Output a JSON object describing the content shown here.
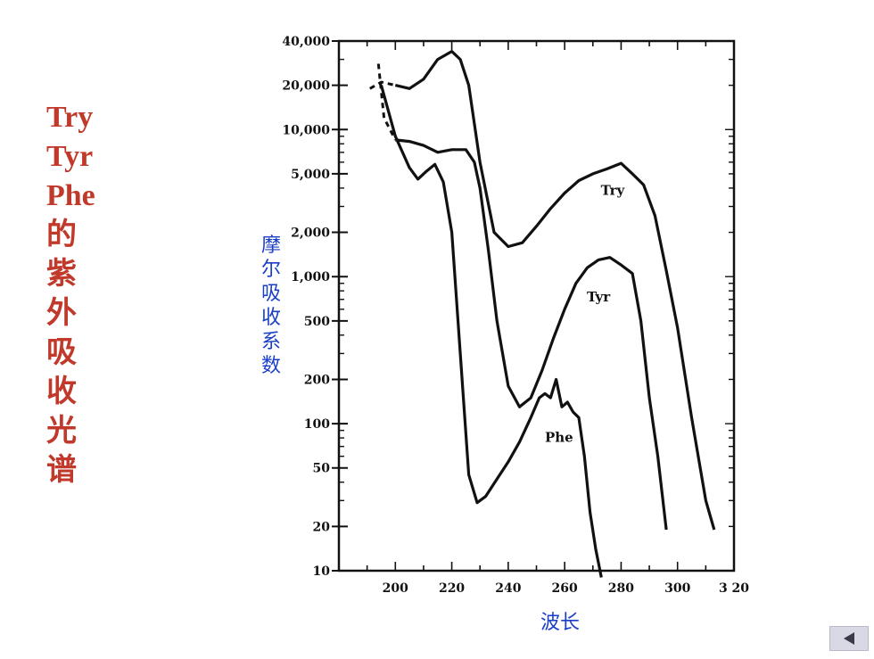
{
  "title_lines": [
    "Try",
    "Tyr",
    "Phe",
    "的",
    "紫",
    "外",
    "吸",
    "收",
    "光",
    "谱"
  ],
  "ylabel_chars": [
    "摩",
    "尔",
    "吸",
    "收",
    "系",
    "数"
  ],
  "xlabel": "波长",
  "nav": {
    "icon": "left-triangle-icon"
  },
  "colors": {
    "title": "#c0392b",
    "axis_label": "#1a3fc7",
    "curve": "#111111"
  },
  "chart_data": {
    "type": "line",
    "xlabel": "波长",
    "ylabel": "摩尔吸收系数",
    "x_scale": "linear",
    "y_scale": "log",
    "xlim": [
      180,
      320
    ],
    "ylim": [
      10,
      40000
    ],
    "x_ticks": [
      200,
      220,
      240,
      260,
      280,
      300,
      320
    ],
    "x_tick_labels": [
      "200",
      "220",
      "240",
      "260",
      "280",
      "300",
      "3 20"
    ],
    "y_ticks": [
      10,
      20,
      50,
      100,
      200,
      500,
      1000,
      2000,
      5000,
      10000,
      20000,
      40000
    ],
    "y_tick_labels": [
      "10",
      "20",
      "50",
      "100",
      "200",
      "500",
      "1,000",
      "2,000",
      "5,000",
      "10,000",
      "20,000",
      "40,000"
    ],
    "series": [
      {
        "name": "Try",
        "dashed_until": 198,
        "x": [
          191,
          195,
          200,
          205,
          210,
          215,
          220,
          223,
          226,
          230,
          235,
          240,
          245,
          250,
          255,
          260,
          265,
          270,
          275,
          280,
          284,
          288,
          292,
          296,
          300,
          305,
          310,
          313
        ],
        "y": [
          19000,
          21000,
          20000,
          19000,
          22000,
          30000,
          34000,
          30000,
          20000,
          6000,
          2000,
          1600,
          1700,
          2200,
          2900,
          3700,
          4500,
          5000,
          5400,
          5900,
          5000,
          4200,
          2600,
          1100,
          450,
          110,
          30,
          19
        ]
      },
      {
        "name": "Tyr",
        "dashed_until": 197,
        "x": [
          194,
          196,
          200,
          205,
          210,
          215,
          220,
          225,
          228,
          230,
          233,
          236,
          240,
          244,
          248,
          252,
          256,
          260,
          264,
          268,
          272,
          276,
          280,
          284,
          287,
          290,
          293,
          296
        ],
        "y": [
          28000,
          12000,
          8500,
          8300,
          7800,
          7000,
          7300,
          7300,
          6000,
          4000,
          1500,
          500,
          180,
          130,
          150,
          230,
          380,
          600,
          900,
          1150,
          1300,
          1350,
          1200,
          1050,
          500,
          150,
          60,
          19
        ]
      },
      {
        "name": "Phe",
        "x": [
          195,
          200,
          205,
          208,
          211,
          214,
          217,
          220,
          223,
          226,
          229,
          232,
          236,
          240,
          244,
          248,
          251,
          253,
          255,
          257,
          259,
          261,
          263,
          265,
          267,
          269,
          271,
          273
        ],
        "y": [
          20000,
          9000,
          5500,
          4600,
          5200,
          5800,
          4400,
          2000,
          300,
          45,
          29,
          32,
          42,
          55,
          75,
          110,
          150,
          160,
          150,
          200,
          130,
          140,
          120,
          110,
          60,
          25,
          14,
          9
        ]
      }
    ]
  }
}
